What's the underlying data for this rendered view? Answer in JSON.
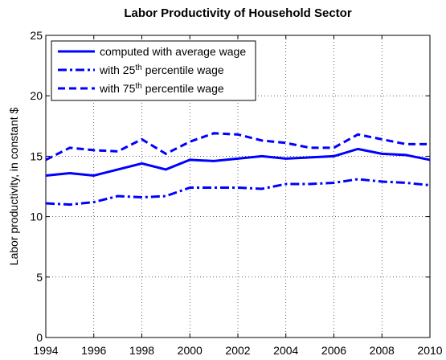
{
  "chart_data": {
    "type": "line",
    "title": "Labor Productivity of Household Sector",
    "y_label": "Labor productivity, in constant $",
    "x": [
      1994,
      1995,
      1996,
      1997,
      1998,
      1999,
      2000,
      2001,
      2002,
      2003,
      2004,
      2005,
      2006,
      2007,
      2008,
      2009,
      2010
    ],
    "series": [
      {
        "name": "computed with average wage",
        "color": "#0000ff",
        "style": "solid",
        "values": [
          13.4,
          13.6,
          13.4,
          13.9,
          14.4,
          13.9,
          14.7,
          14.6,
          14.8,
          15.0,
          14.8,
          14.9,
          15.0,
          15.6,
          15.2,
          15.1,
          14.7
        ]
      },
      {
        "name": "with 25th percentile wage",
        "color": "#0000ff",
        "style": "dashdot",
        "values": [
          11.1,
          11.0,
          11.2,
          11.7,
          11.6,
          11.7,
          12.4,
          12.4,
          12.4,
          12.3,
          12.7,
          12.7,
          12.8,
          13.1,
          12.9,
          12.8,
          12.6
        ]
      },
      {
        "name": "with 75th percentile wage",
        "color": "#0000ff",
        "style": "dashed",
        "values": [
          14.7,
          15.7,
          15.5,
          15.4,
          16.4,
          15.2,
          16.2,
          16.9,
          16.8,
          16.3,
          16.1,
          15.7,
          15.7,
          16.8,
          16.4,
          16.0,
          16.0
        ]
      }
    ],
    "xlim": [
      1994,
      2010
    ],
    "xticks": [
      1994,
      1996,
      1998,
      2000,
      2002,
      2004,
      2006,
      2008,
      2010
    ],
    "ylim": [
      0,
      25
    ],
    "yticks": [
      0,
      5,
      10,
      15,
      20,
      25
    ],
    "grid": true,
    "legend": "upper-left"
  }
}
